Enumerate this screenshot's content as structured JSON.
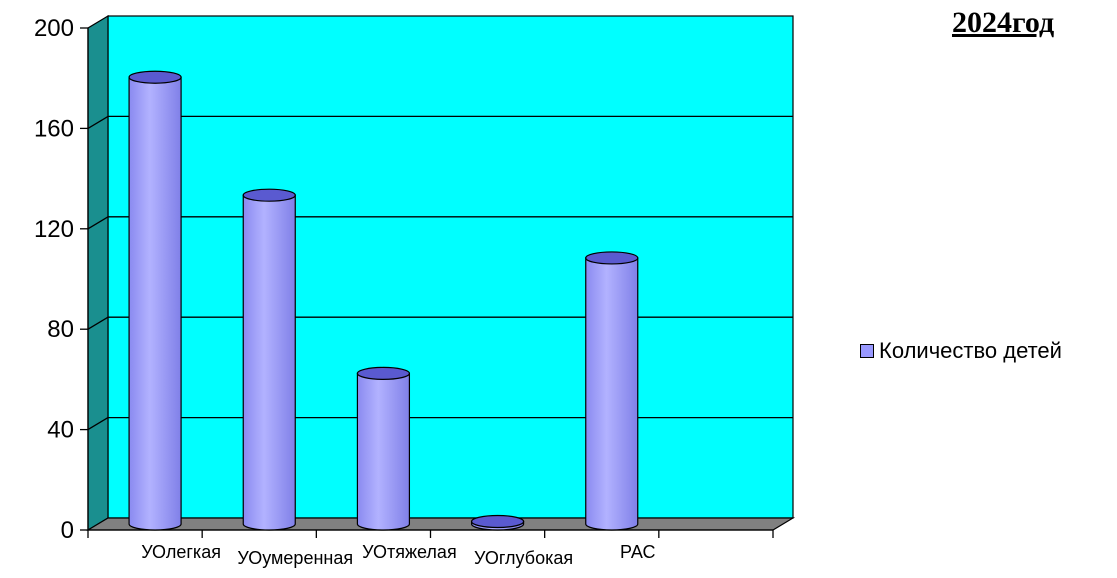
{
  "chart_data": {
    "type": "bar",
    "title": "2024год",
    "categories": [
      "УОлегкая",
      "УОумеренная",
      "УОтяжелая",
      "УОглубокая",
      "РАС"
    ],
    "series": [
      {
        "name": "Количество детей",
        "values": [
          178,
          131,
          60,
          1,
          106
        ],
        "color": "#9999ff"
      }
    ],
    "ylim": [
      0,
      200
    ],
    "yticks": [
      "0",
      "40",
      "80",
      "120",
      "160",
      "200"
    ],
    "grid": true,
    "legend_position": "right",
    "colors": {
      "wall": "#00ffff",
      "side_wall": "#1a8f8f",
      "floor": "#808080",
      "bar": "#9999ff",
      "bar_shadow": "#5a5ad0"
    }
  }
}
